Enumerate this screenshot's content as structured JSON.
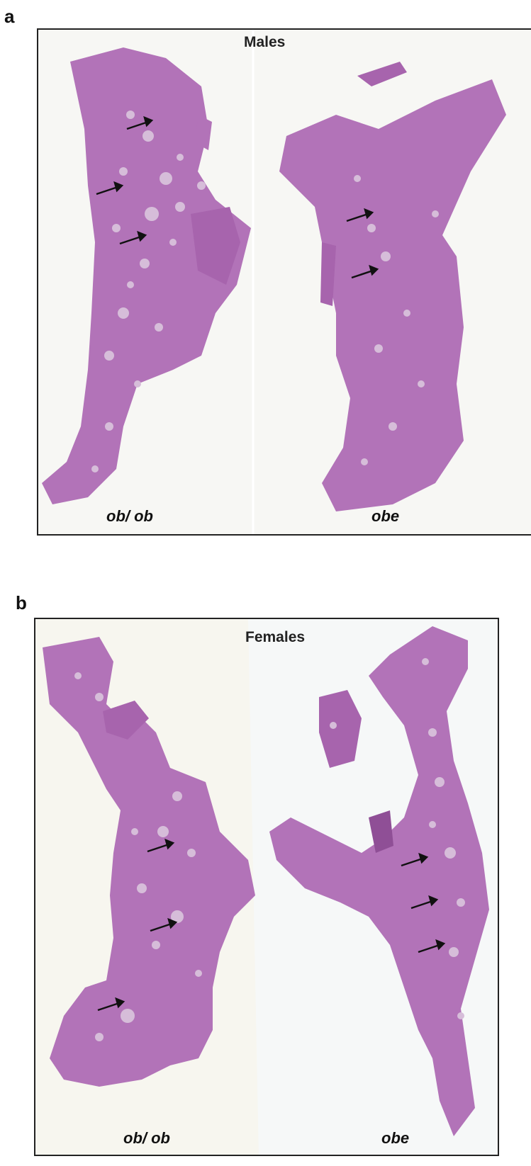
{
  "panels": [
    {
      "letter": "a",
      "title": "Males",
      "left_label": "ob/ ob",
      "right_label": "obe"
    },
    {
      "letter": "b",
      "title": "Females",
      "left_label": "ob/ ob",
      "right_label": "obe"
    }
  ],
  "colors": {
    "tissue": "#b071b6",
    "tissue_dark": "#9c5aa2",
    "islet": "#d5b9d8",
    "background": "#f6f7f3",
    "frame": "#222222",
    "arrow": "#111111"
  }
}
